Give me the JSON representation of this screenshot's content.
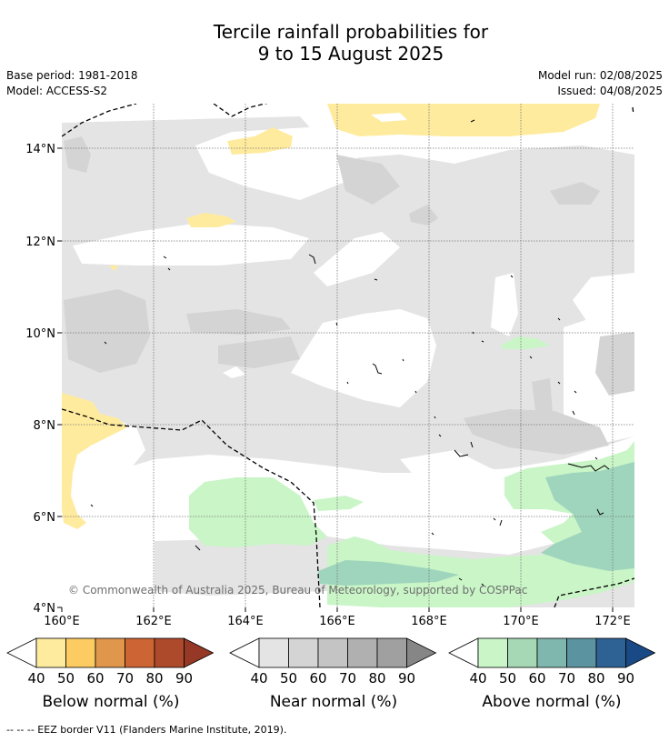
{
  "header": {
    "title_line1": "Tercile rainfall probabilities for",
    "title_line2": "9 to 15 August 2025",
    "base_period": "Base period: 1981-2018",
    "model": "Model: ACCESS-S2",
    "model_run": "Model run: 02/08/2025",
    "issued": "Issued: 04/08/2025"
  },
  "map": {
    "lat_ticks": [
      "14°N",
      "12°N",
      "10°N",
      "8°N",
      "6°N",
      "4°N"
    ],
    "lon_ticks": [
      "160°E",
      "162°E",
      "164°E",
      "166°E",
      "168°E",
      "170°E",
      "172°E"
    ],
    "copyright": "© Commonwealth of Australia 2025, Bureau of Meteorology, supported by COSPPac",
    "colors": {
      "near_light": "#e4e4e4",
      "near_mid": "#d4d4d4",
      "below_light": "#ffeb9e",
      "above_light": "#c9f5c7",
      "above_mid": "#9fd5bd",
      "grid": "#777777"
    }
  },
  "colorbars": [
    {
      "label": "Below normal (%)",
      "ticks": [
        "40",
        "50",
        "60",
        "70",
        "80",
        "90"
      ],
      "colors": [
        "#ffeb9e",
        "#fccb62",
        "#e0974c",
        "#cd6433",
        "#ae4a2c",
        "#963826"
      ]
    },
    {
      "label": "Near normal (%)",
      "ticks": [
        "40",
        "50",
        "60",
        "70",
        "80",
        "90"
      ],
      "colors": [
        "#e4e4e4",
        "#d4d4d4",
        "#c4c4c4",
        "#b0b0b0",
        "#a0a0a0",
        "#868686"
      ]
    },
    {
      "label": "Above normal (%)",
      "ticks": [
        "40",
        "50",
        "60",
        "70",
        "80",
        "90"
      ],
      "colors": [
        "#c9f5c7",
        "#a6d8b5",
        "#7fb6ad",
        "#5b93a1",
        "#2f6294",
        "#1a4a86"
      ]
    }
  ],
  "footnote": "--  --  -- EEZ border V11 (Flanders Marine Institute, 2019)."
}
